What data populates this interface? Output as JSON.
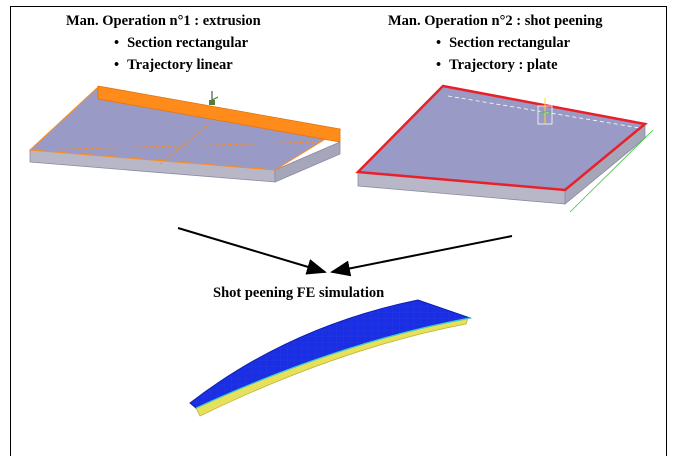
{
  "operation1": {
    "title": "Man. Operation n°1 : extrusion",
    "bullets": [
      "Section rectangular",
      "Trajectory linear"
    ]
  },
  "operation2": {
    "title": "Man. Operation n°2 : shot peening",
    "bullets": [
      "Section rectangular",
      "Trajectory : plate"
    ]
  },
  "result": {
    "title": "Shot peening FE simulation"
  },
  "colors": {
    "plate_top": "#9a9ac6",
    "plate_side": "#b7b7c8",
    "extrusion_band": "#ff8c1a",
    "peening_edge": "#e8202a",
    "mesh_blue": "#1a2ee6",
    "mesh_yellow": "#e6e05a"
  }
}
